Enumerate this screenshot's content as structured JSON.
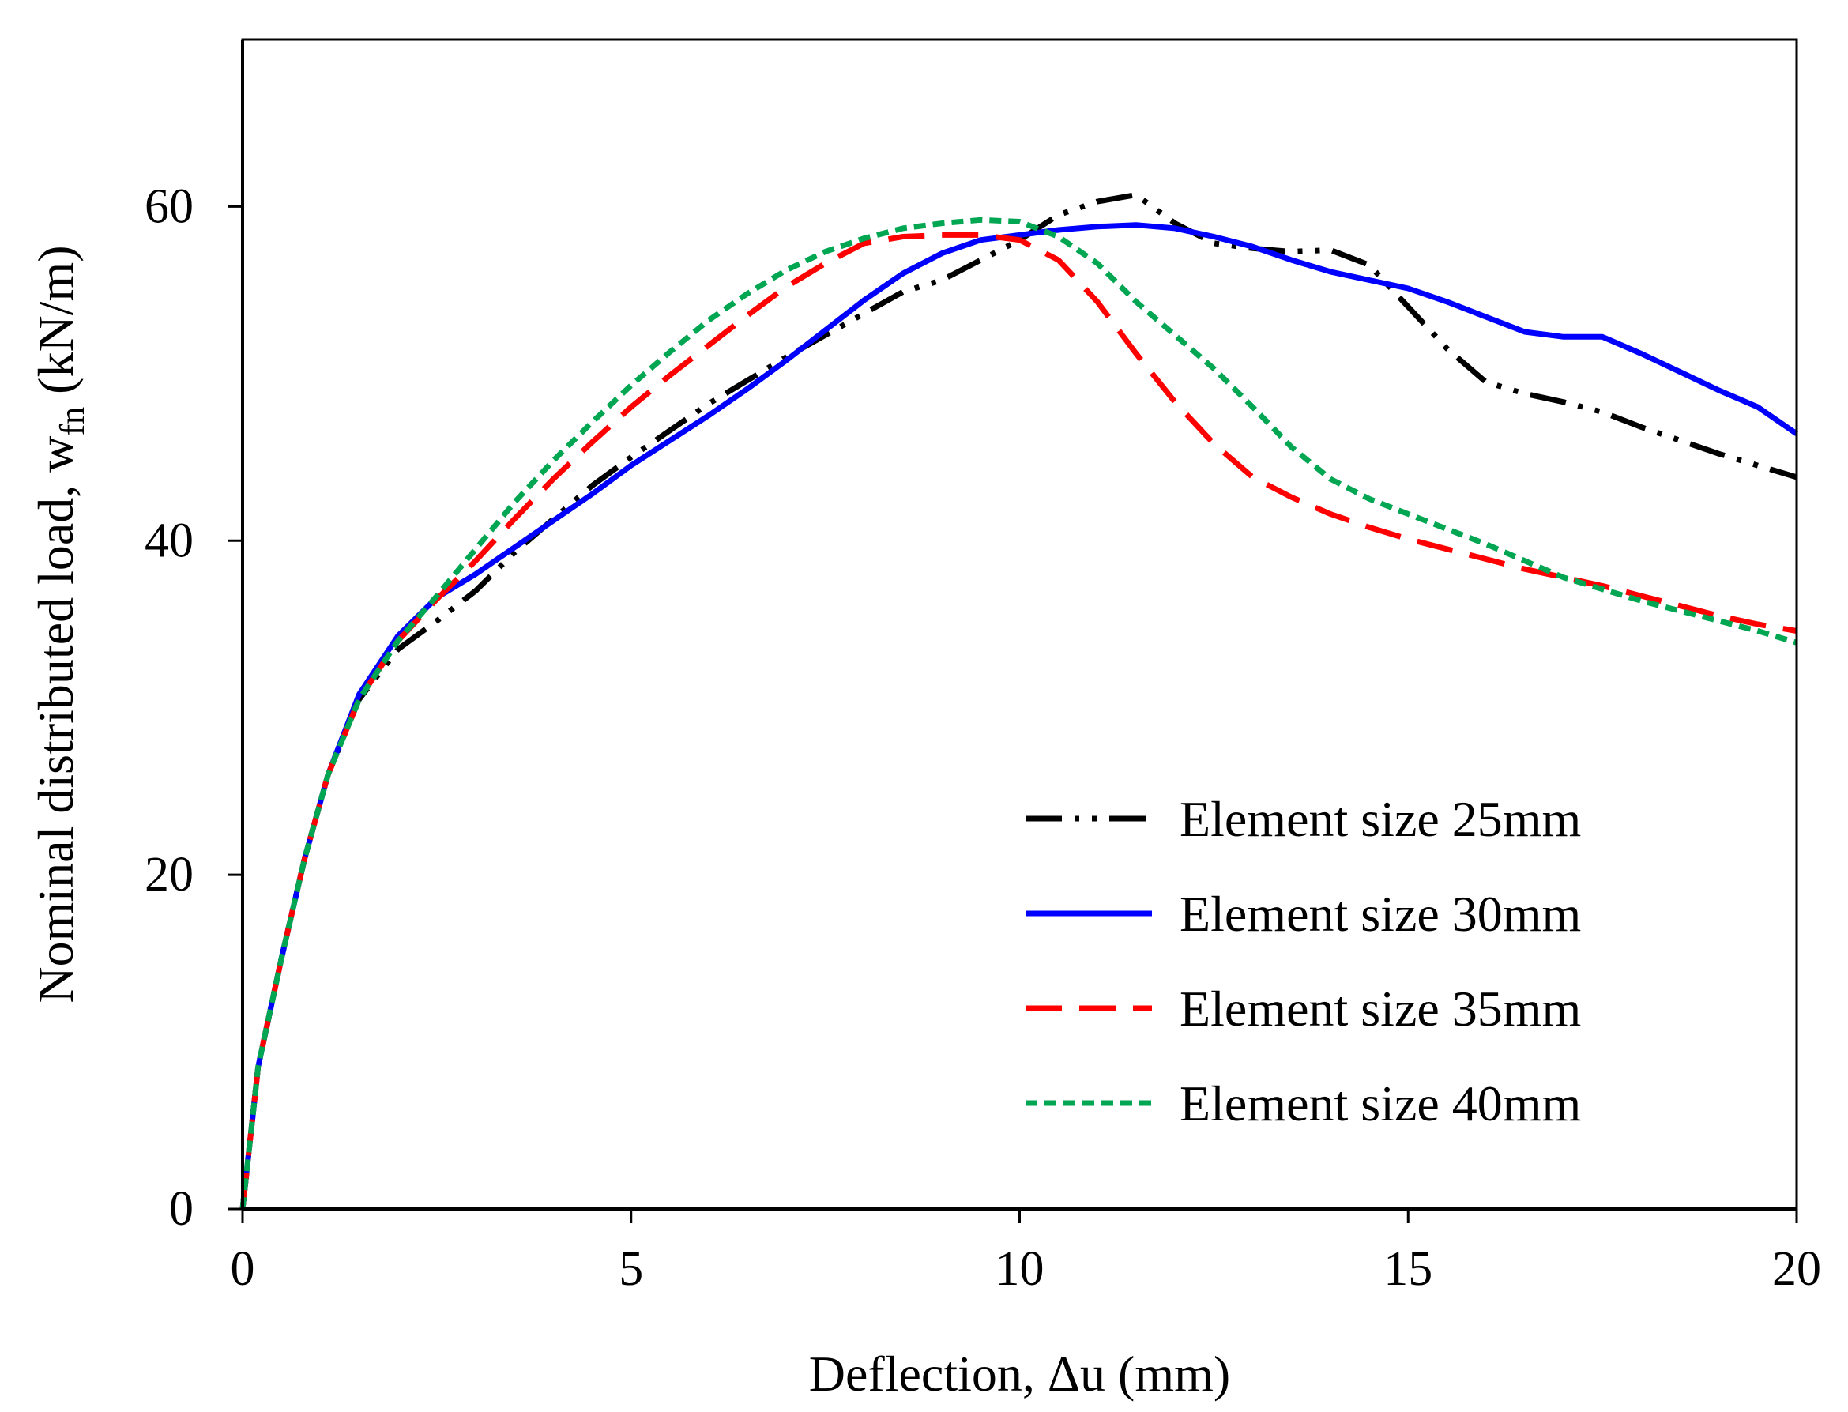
{
  "chart_data": {
    "type": "line",
    "title": "",
    "xlabel": "Deflection, Δu (mm)",
    "ylabel": {
      "main": "Nominal distributed load, w",
      "subscript": "fn",
      "unit": " (kN/m)"
    },
    "xlim": [
      0,
      20
    ],
    "ylim": [
      0,
      70
    ],
    "xticks": [
      0,
      5,
      10,
      15,
      20
    ],
    "yticks": [
      0,
      20,
      40,
      60
    ],
    "grid": false,
    "legend_position": "bottom-right",
    "series": [
      {
        "name": "Element size 25mm",
        "color": "#000000",
        "dash": "dash-dot-dot",
        "points": [
          [
            0,
            0
          ],
          [
            0.2,
            8.5
          ],
          [
            0.5,
            15
          ],
          [
            0.8,
            21
          ],
          [
            1.1,
            26
          ],
          [
            1.5,
            30.5
          ],
          [
            2.0,
            33.5
          ],
          [
            2.5,
            35.2
          ],
          [
            3.0,
            37
          ],
          [
            3.5,
            39.3
          ],
          [
            4.0,
            41.3
          ],
          [
            4.5,
            43.3
          ],
          [
            5.0,
            45
          ],
          [
            5.5,
            46.6
          ],
          [
            6.0,
            48.2
          ],
          [
            6.5,
            49.6
          ],
          [
            7.0,
            51
          ],
          [
            7.5,
            52.3
          ],
          [
            8.0,
            53.6
          ],
          [
            8.5,
            54.9
          ],
          [
            9.0,
            55.6
          ],
          [
            9.5,
            56.8
          ],
          [
            10.0,
            58
          ],
          [
            10.5,
            59.5
          ],
          [
            11.0,
            60.3
          ],
          [
            11.5,
            60.7
          ],
          [
            12.0,
            59
          ],
          [
            12.5,
            57.8
          ],
          [
            13.0,
            57.5
          ],
          [
            13.5,
            57.3
          ],
          [
            14.0,
            57.4
          ],
          [
            14.5,
            56.5
          ],
          [
            15.0,
            54
          ],
          [
            15.5,
            51.5
          ],
          [
            16.0,
            49.5
          ],
          [
            16.5,
            48.8
          ],
          [
            17.0,
            48.3
          ],
          [
            17.5,
            47.7
          ],
          [
            18.0,
            46.8
          ],
          [
            18.5,
            46
          ],
          [
            19.0,
            45.2
          ],
          [
            19.5,
            44.5
          ],
          [
            20.0,
            43.8
          ]
        ]
      },
      {
        "name": "Element size 30mm",
        "color": "#0000ff",
        "dash": "solid",
        "points": [
          [
            0,
            0
          ],
          [
            0.2,
            8.5
          ],
          [
            0.5,
            15
          ],
          [
            0.8,
            21
          ],
          [
            1.1,
            26
          ],
          [
            1.5,
            30.8
          ],
          [
            2.0,
            34.3
          ],
          [
            2.5,
            36.6
          ],
          [
            3.0,
            38
          ],
          [
            3.5,
            39.6
          ],
          [
            4.0,
            41.2
          ],
          [
            4.5,
            42.8
          ],
          [
            5.0,
            44.5
          ],
          [
            5.5,
            46
          ],
          [
            6.0,
            47.5
          ],
          [
            6.5,
            49.1
          ],
          [
            7.0,
            50.8
          ],
          [
            7.5,
            52.6
          ],
          [
            8.0,
            54.4
          ],
          [
            8.5,
            56
          ],
          [
            9.0,
            57.2
          ],
          [
            9.5,
            58
          ],
          [
            10.0,
            58.3
          ],
          [
            10.5,
            58.6
          ],
          [
            11.0,
            58.8
          ],
          [
            11.5,
            58.9
          ],
          [
            12.0,
            58.7
          ],
          [
            12.5,
            58.2
          ],
          [
            13.0,
            57.6
          ],
          [
            13.5,
            56.8
          ],
          [
            14.0,
            56.1
          ],
          [
            14.5,
            55.6
          ],
          [
            15.0,
            55.1
          ],
          [
            15.5,
            54.3
          ],
          [
            16.0,
            53.4
          ],
          [
            16.5,
            52.5
          ],
          [
            17.0,
            52.2
          ],
          [
            17.5,
            52.2
          ],
          [
            18.0,
            51.2
          ],
          [
            18.5,
            50.1
          ],
          [
            19.0,
            49
          ],
          [
            19.5,
            48
          ],
          [
            20.0,
            46.4
          ]
        ]
      },
      {
        "name": "Element size 35mm",
        "color": "#ff0000",
        "dash": "long-dash",
        "points": [
          [
            0,
            0
          ],
          [
            0.2,
            8.5
          ],
          [
            0.5,
            15
          ],
          [
            0.8,
            21
          ],
          [
            1.1,
            26
          ],
          [
            1.5,
            30.5
          ],
          [
            2.0,
            34
          ],
          [
            2.5,
            36.5
          ],
          [
            3.0,
            38.8
          ],
          [
            3.5,
            41.3
          ],
          [
            4.0,
            43.7
          ],
          [
            4.5,
            45.9
          ],
          [
            5.0,
            48
          ],
          [
            5.5,
            49.9
          ],
          [
            6.0,
            51.7
          ],
          [
            6.5,
            53.5
          ],
          [
            7.0,
            55.2
          ],
          [
            7.5,
            56.6
          ],
          [
            8.0,
            57.8
          ],
          [
            8.5,
            58.2
          ],
          [
            9.0,
            58.3
          ],
          [
            9.5,
            58.3
          ],
          [
            10.0,
            58
          ],
          [
            10.5,
            56.8
          ],
          [
            11.0,
            54.3
          ],
          [
            11.5,
            51.2
          ],
          [
            12.0,
            48.3
          ],
          [
            12.5,
            45.8
          ],
          [
            13.0,
            43.8
          ],
          [
            13.5,
            42.6
          ],
          [
            14.0,
            41.6
          ],
          [
            14.5,
            40.8
          ],
          [
            15.0,
            40.1
          ],
          [
            15.5,
            39.5
          ],
          [
            16.0,
            38.9
          ],
          [
            16.5,
            38.3
          ],
          [
            17.0,
            37.8
          ],
          [
            17.5,
            37.3
          ],
          [
            18.0,
            36.7
          ],
          [
            18.5,
            36.1
          ],
          [
            19.0,
            35.5
          ],
          [
            19.5,
            35
          ],
          [
            20.0,
            34.6
          ]
        ]
      },
      {
        "name": "Element size 40mm",
        "color": "#00a651",
        "dash": "short-dash",
        "points": [
          [
            0,
            0
          ],
          [
            0.2,
            8.5
          ],
          [
            0.5,
            15
          ],
          [
            0.8,
            21
          ],
          [
            1.1,
            26
          ],
          [
            1.5,
            30.5
          ],
          [
            2.0,
            34
          ],
          [
            2.5,
            36.7
          ],
          [
            3.0,
            39.5
          ],
          [
            3.5,
            42.3
          ],
          [
            4.0,
            44.8
          ],
          [
            4.5,
            47.1
          ],
          [
            5.0,
            49.3
          ],
          [
            5.5,
            51.3
          ],
          [
            6.0,
            53.2
          ],
          [
            6.5,
            54.8
          ],
          [
            7.0,
            56.2
          ],
          [
            7.5,
            57.3
          ],
          [
            8.0,
            58.1
          ],
          [
            8.5,
            58.7
          ],
          [
            9.0,
            59
          ],
          [
            9.5,
            59.2
          ],
          [
            10.0,
            59.1
          ],
          [
            10.5,
            58.2
          ],
          [
            11.0,
            56.6
          ],
          [
            11.5,
            54.3
          ],
          [
            12.0,
            52.3
          ],
          [
            12.5,
            50.3
          ],
          [
            13.0,
            48
          ],
          [
            13.5,
            45.6
          ],
          [
            14.0,
            43.7
          ],
          [
            14.5,
            42.5
          ],
          [
            15.0,
            41.6
          ],
          [
            15.5,
            40.7
          ],
          [
            16.0,
            39.8
          ],
          [
            16.5,
            38.8
          ],
          [
            17.0,
            37.8
          ],
          [
            17.5,
            37.1
          ],
          [
            18.0,
            36.4
          ],
          [
            18.5,
            35.8
          ],
          [
            19.0,
            35.2
          ],
          [
            19.5,
            34.6
          ],
          [
            20.0,
            33.9
          ]
        ]
      }
    ]
  }
}
